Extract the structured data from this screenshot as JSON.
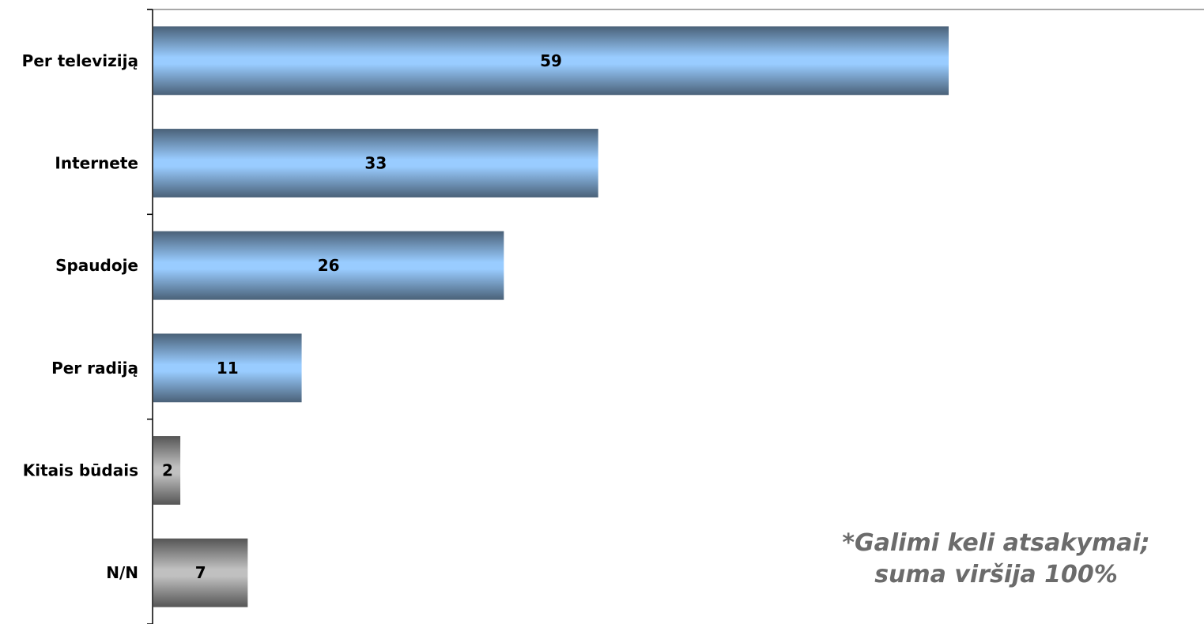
{
  "chart_data": {
    "type": "bar",
    "orientation": "horizontal",
    "categories": [
      "Per televiziją",
      "Internete",
      "Spaudoje",
      "Per radiją",
      "Kitais būdais",
      "N/N"
    ],
    "values": [
      59,
      33,
      26,
      11,
      2,
      7
    ],
    "bar_styles": [
      "blue",
      "blue",
      "blue",
      "blue",
      "gray",
      "gray"
    ],
    "xlim": [
      0,
      78
    ],
    "grid": false,
    "legend": "none",
    "colors": {
      "blue_light": "#99ccff",
      "blue_dark": "#4a6178",
      "gray_light": "#c0c0c0",
      "gray_dark": "#555555"
    }
  },
  "note": {
    "line1": "*Galimi keli atsakymai;",
    "line2": "suma viršija 100%"
  }
}
